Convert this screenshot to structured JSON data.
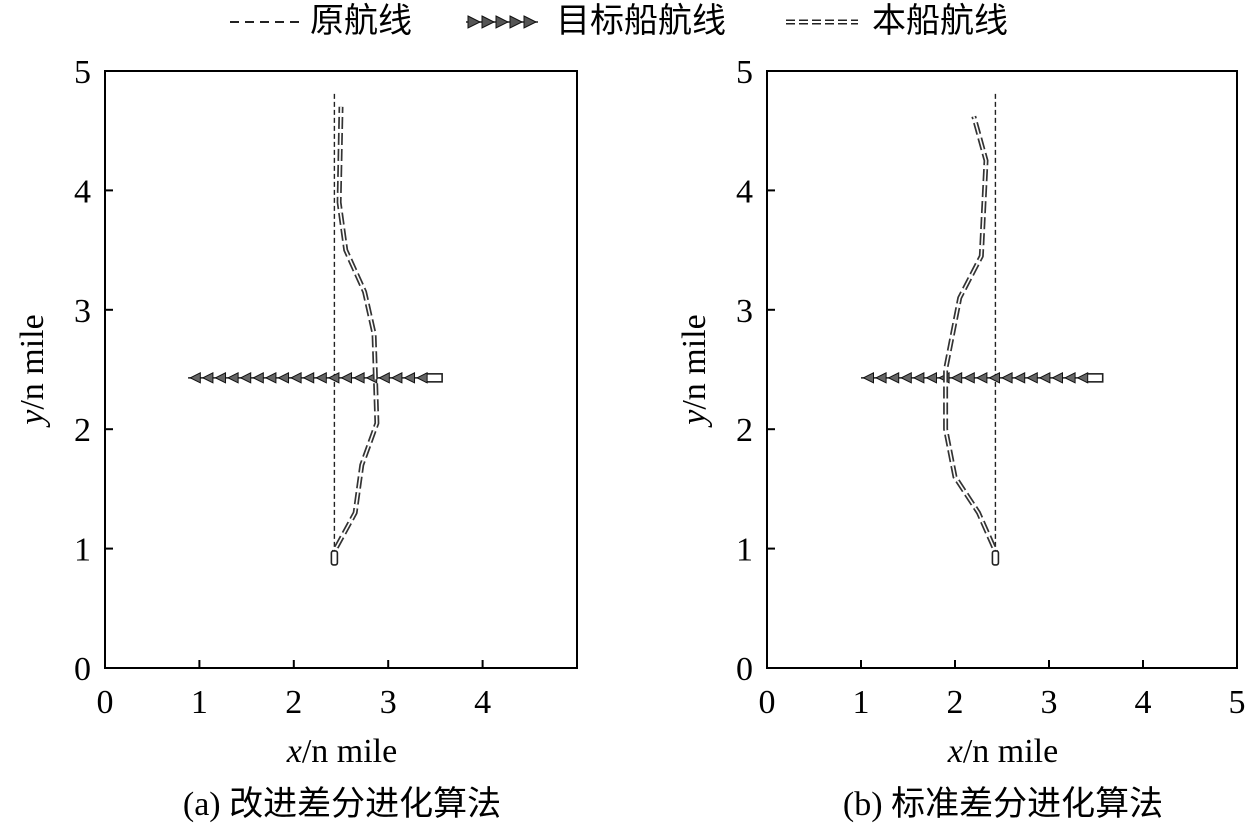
{
  "legend": {
    "original_route": "原航线",
    "target_ship_route": "目标船航线",
    "own_ship_route": "本船航线"
  },
  "chart_data": [
    {
      "type": "line",
      "caption": "(a) 改进差分进化算法",
      "xlabel": "x/n mile",
      "ylabel": "y/n mile",
      "xlim": [
        0,
        5
      ],
      "ylim": [
        0,
        5
      ],
      "xticks": [
        "0",
        "1",
        "2",
        "3",
        "4"
      ],
      "yticks": [
        "0",
        "1",
        "2",
        "3",
        "4",
        "5"
      ],
      "grid": false,
      "legend_position": "top",
      "series": [
        {
          "name": "原航线",
          "style": "dashed-thin",
          "points": [
            [
              2.43,
              0.88
            ],
            [
              2.43,
              4.82
            ]
          ]
        },
        {
          "name": "目标船航线",
          "style": "triangles-left",
          "points": [
            [
              3.55,
              2.43
            ],
            [
              0.88,
              2.43
            ]
          ]
        },
        {
          "name": "本船航线",
          "style": "double-dashed",
          "points": [
            [
              2.43,
              0.88
            ],
            [
              2.43,
              0.98
            ],
            [
              2.65,
              1.3
            ],
            [
              2.72,
              1.7
            ],
            [
              2.88,
              2.05
            ],
            [
              2.85,
              2.8
            ],
            [
              2.75,
              3.15
            ],
            [
              2.55,
              3.5
            ],
            [
              2.48,
              3.9
            ],
            [
              2.5,
              4.7
            ]
          ]
        }
      ]
    },
    {
      "type": "line",
      "caption": "(b) 标准差分进化算法",
      "xlabel": "x/n mile",
      "ylabel": "y/n mile",
      "xlim": [
        0,
        5
      ],
      "ylim": [
        0,
        5
      ],
      "xticks": [
        "0",
        "1",
        "2",
        "3",
        "4",
        "5"
      ],
      "yticks": [
        "0",
        "1",
        "2",
        "3",
        "4",
        "5"
      ],
      "grid": false,
      "legend_position": "top",
      "series": [
        {
          "name": "原航线",
          "style": "dashed-thin",
          "points": [
            [
              2.43,
              0.88
            ],
            [
              2.43,
              4.82
            ]
          ]
        },
        {
          "name": "目标船航线",
          "style": "triangles-left",
          "points": [
            [
              3.55,
              2.43
            ],
            [
              1.0,
              2.43
            ]
          ]
        },
        {
          "name": "本船航线",
          "style": "double-dashed",
          "points": [
            [
              2.43,
              0.88
            ],
            [
              2.43,
              0.98
            ],
            [
              2.25,
              1.3
            ],
            [
              2.0,
              1.6
            ],
            [
              1.9,
              2.0
            ],
            [
              1.9,
              2.5
            ],
            [
              2.05,
              3.1
            ],
            [
              2.28,
              3.45
            ],
            [
              2.33,
              4.25
            ],
            [
              2.2,
              4.62
            ]
          ]
        }
      ]
    }
  ]
}
